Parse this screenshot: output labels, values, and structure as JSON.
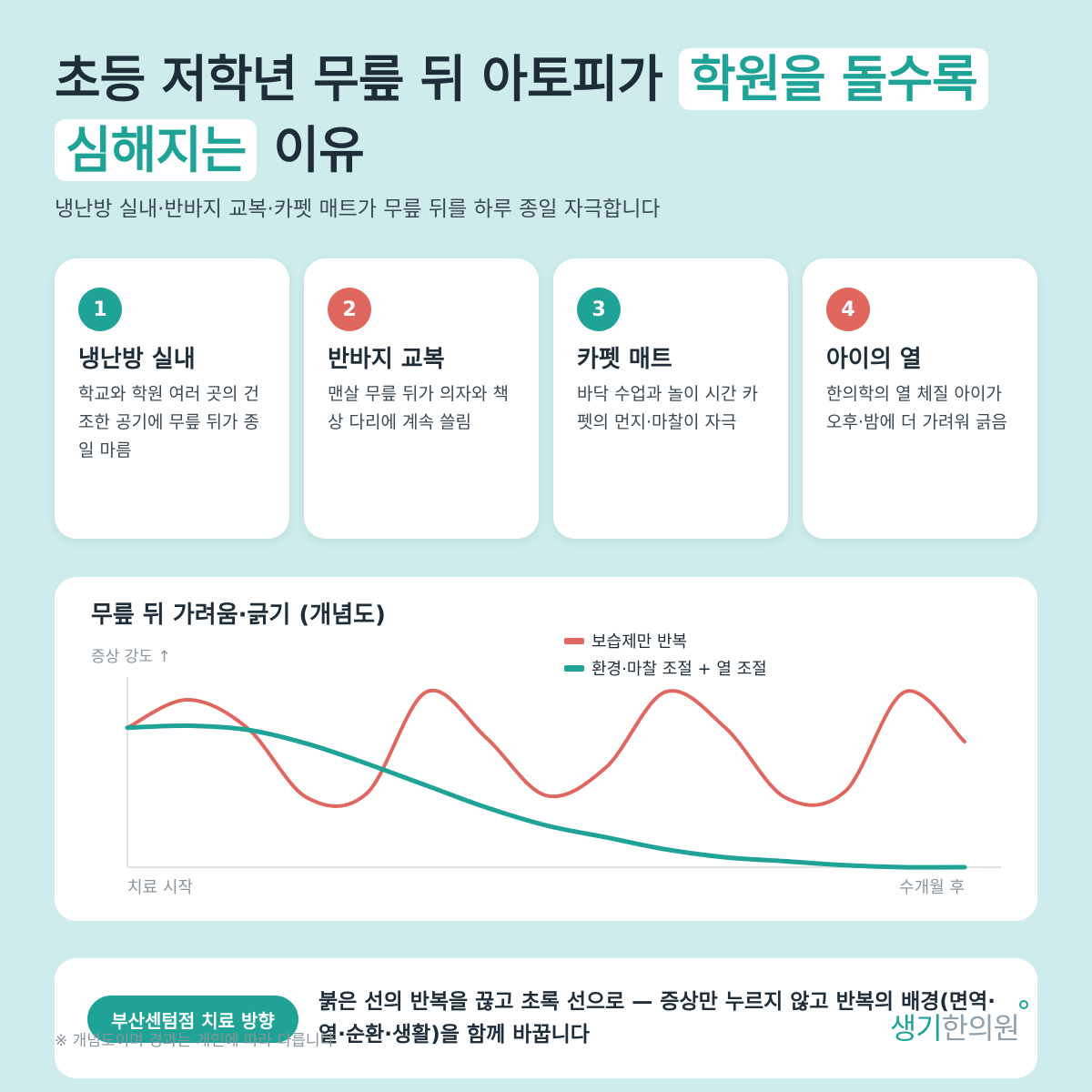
{
  "title": {
    "part1": "초등 저학년 무릎 뒤 아토피가 ",
    "highlight": "학원을 돌수록 심해지는",
    "part2": " 이유"
  },
  "subtitle": "냉난방 실내·반바지 교복·카펫 매트가 무릎 뒤를 하루 종일 자극합니다",
  "cards": [
    {
      "number": "1",
      "title": "냉난방 실내",
      "desc": "학교와 학원 여러 곳의 건조한 공기에 무릎 뒤가 종일 마름",
      "badge_color": "#1ea396"
    },
    {
      "number": "2",
      "title": "반바지 교복",
      "desc": "맨살 무릎 뒤가 의자와 책상 다리에 계속 쓸림",
      "badge_color": "#e0675f"
    },
    {
      "number": "3",
      "title": "카펫 매트",
      "desc": "바닥 수업과 놀이 시간 카펫의 먼지·마찰이 자극",
      "badge_color": "#1ea396"
    },
    {
      "number": "4",
      "title": "아이의 열",
      "desc": "한의학의 열 체질 아이가 오후·밤에 더 가려워 긁음",
      "badge_color": "#e0675f"
    }
  ],
  "chart_data": {
    "type": "line",
    "title": "무릎 뒤 가려움·긁기 (개념도)",
    "ylabel": "증상 강도 ↑",
    "x_start_label": "치료 시작",
    "x_end_label": "수개월 후",
    "grid": false,
    "legend_position": "top-right",
    "series": [
      {
        "name": "보습제만 반복",
        "color": "#e0675f",
        "values": [
          0.7,
          0.84,
          0.7,
          0.35,
          0.37,
          0.88,
          0.65,
          0.36,
          0.5,
          0.88,
          0.7,
          0.35,
          0.38,
          0.88,
          0.63
        ]
      },
      {
        "name": "환경·마찰 조절 + 열 조절",
        "color": "#1ea396",
        "values": [
          0.7,
          0.71,
          0.69,
          0.62,
          0.52,
          0.41,
          0.3,
          0.21,
          0.15,
          0.09,
          0.05,
          0.03,
          0.01,
          0.0,
          0.0
        ]
      }
    ]
  },
  "bottom": {
    "pill": "부산센텀점 치료 방향",
    "text": "붉은 선의 반복을 끊고 초록 선으로 — 증상만 누르지 않고 반복의 배경(면역·열·순환·생활)을 함께 바꿉니다",
    "note": "※ 개념도이며 경과는 개인에 따라 다릅니다",
    "logo_part1": "생기",
    "logo_part2": "한의원"
  }
}
